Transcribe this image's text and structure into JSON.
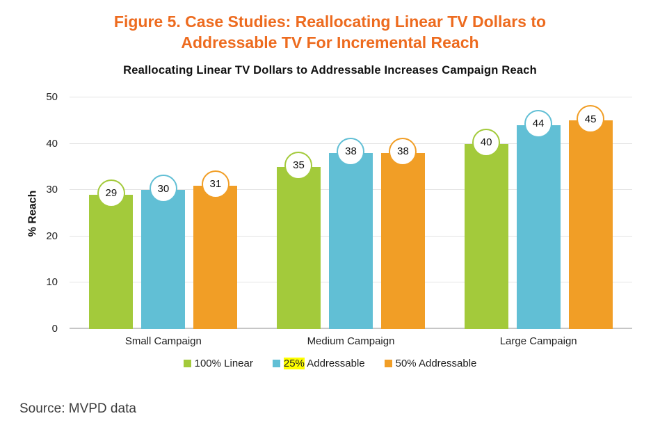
{
  "figure": {
    "title_line1": "Figure 5. Case Studies: Reallocating Linear TV Dollars to",
    "title_line2": "Addressable TV For Incremental Reach"
  },
  "source": "Source: MVPD data",
  "colors": {
    "figure_title": "#ED6B1F",
    "green": "#A3CA3B",
    "blue": "#61BFD5",
    "orange": "#F19E26",
    "legend_highlight": "#FFFF00",
    "gridline": "#E3E3E3",
    "zero_line": "#C6C6C6"
  },
  "chart_data": {
    "type": "bar",
    "title": "Reallocating Linear TV Dollars to Addressable Increases Campaign Reach",
    "xlabel": "",
    "ylabel": "% Reach",
    "ylim": [
      0,
      50
    ],
    "yticks": [
      0,
      10,
      20,
      30,
      40,
      50
    ],
    "grid": "horizontal",
    "legend_position": "bottom",
    "data_label_style": "circled",
    "categories": [
      "Small Campaign",
      "Medium Campaign",
      "Large Campaign"
    ],
    "series": [
      {
        "name": "100% Linear",
        "color": "#A3CA3B",
        "values": [
          29,
          35,
          40
        ],
        "legend_highlight": ""
      },
      {
        "name": "25% Addressable",
        "color": "#61BFD5",
        "values": [
          30,
          38,
          44
        ],
        "legend_highlight": "25%"
      },
      {
        "name": "50% Addressable",
        "color": "#F19E26",
        "values": [
          31,
          38,
          45
        ],
        "legend_highlight": ""
      }
    ]
  }
}
